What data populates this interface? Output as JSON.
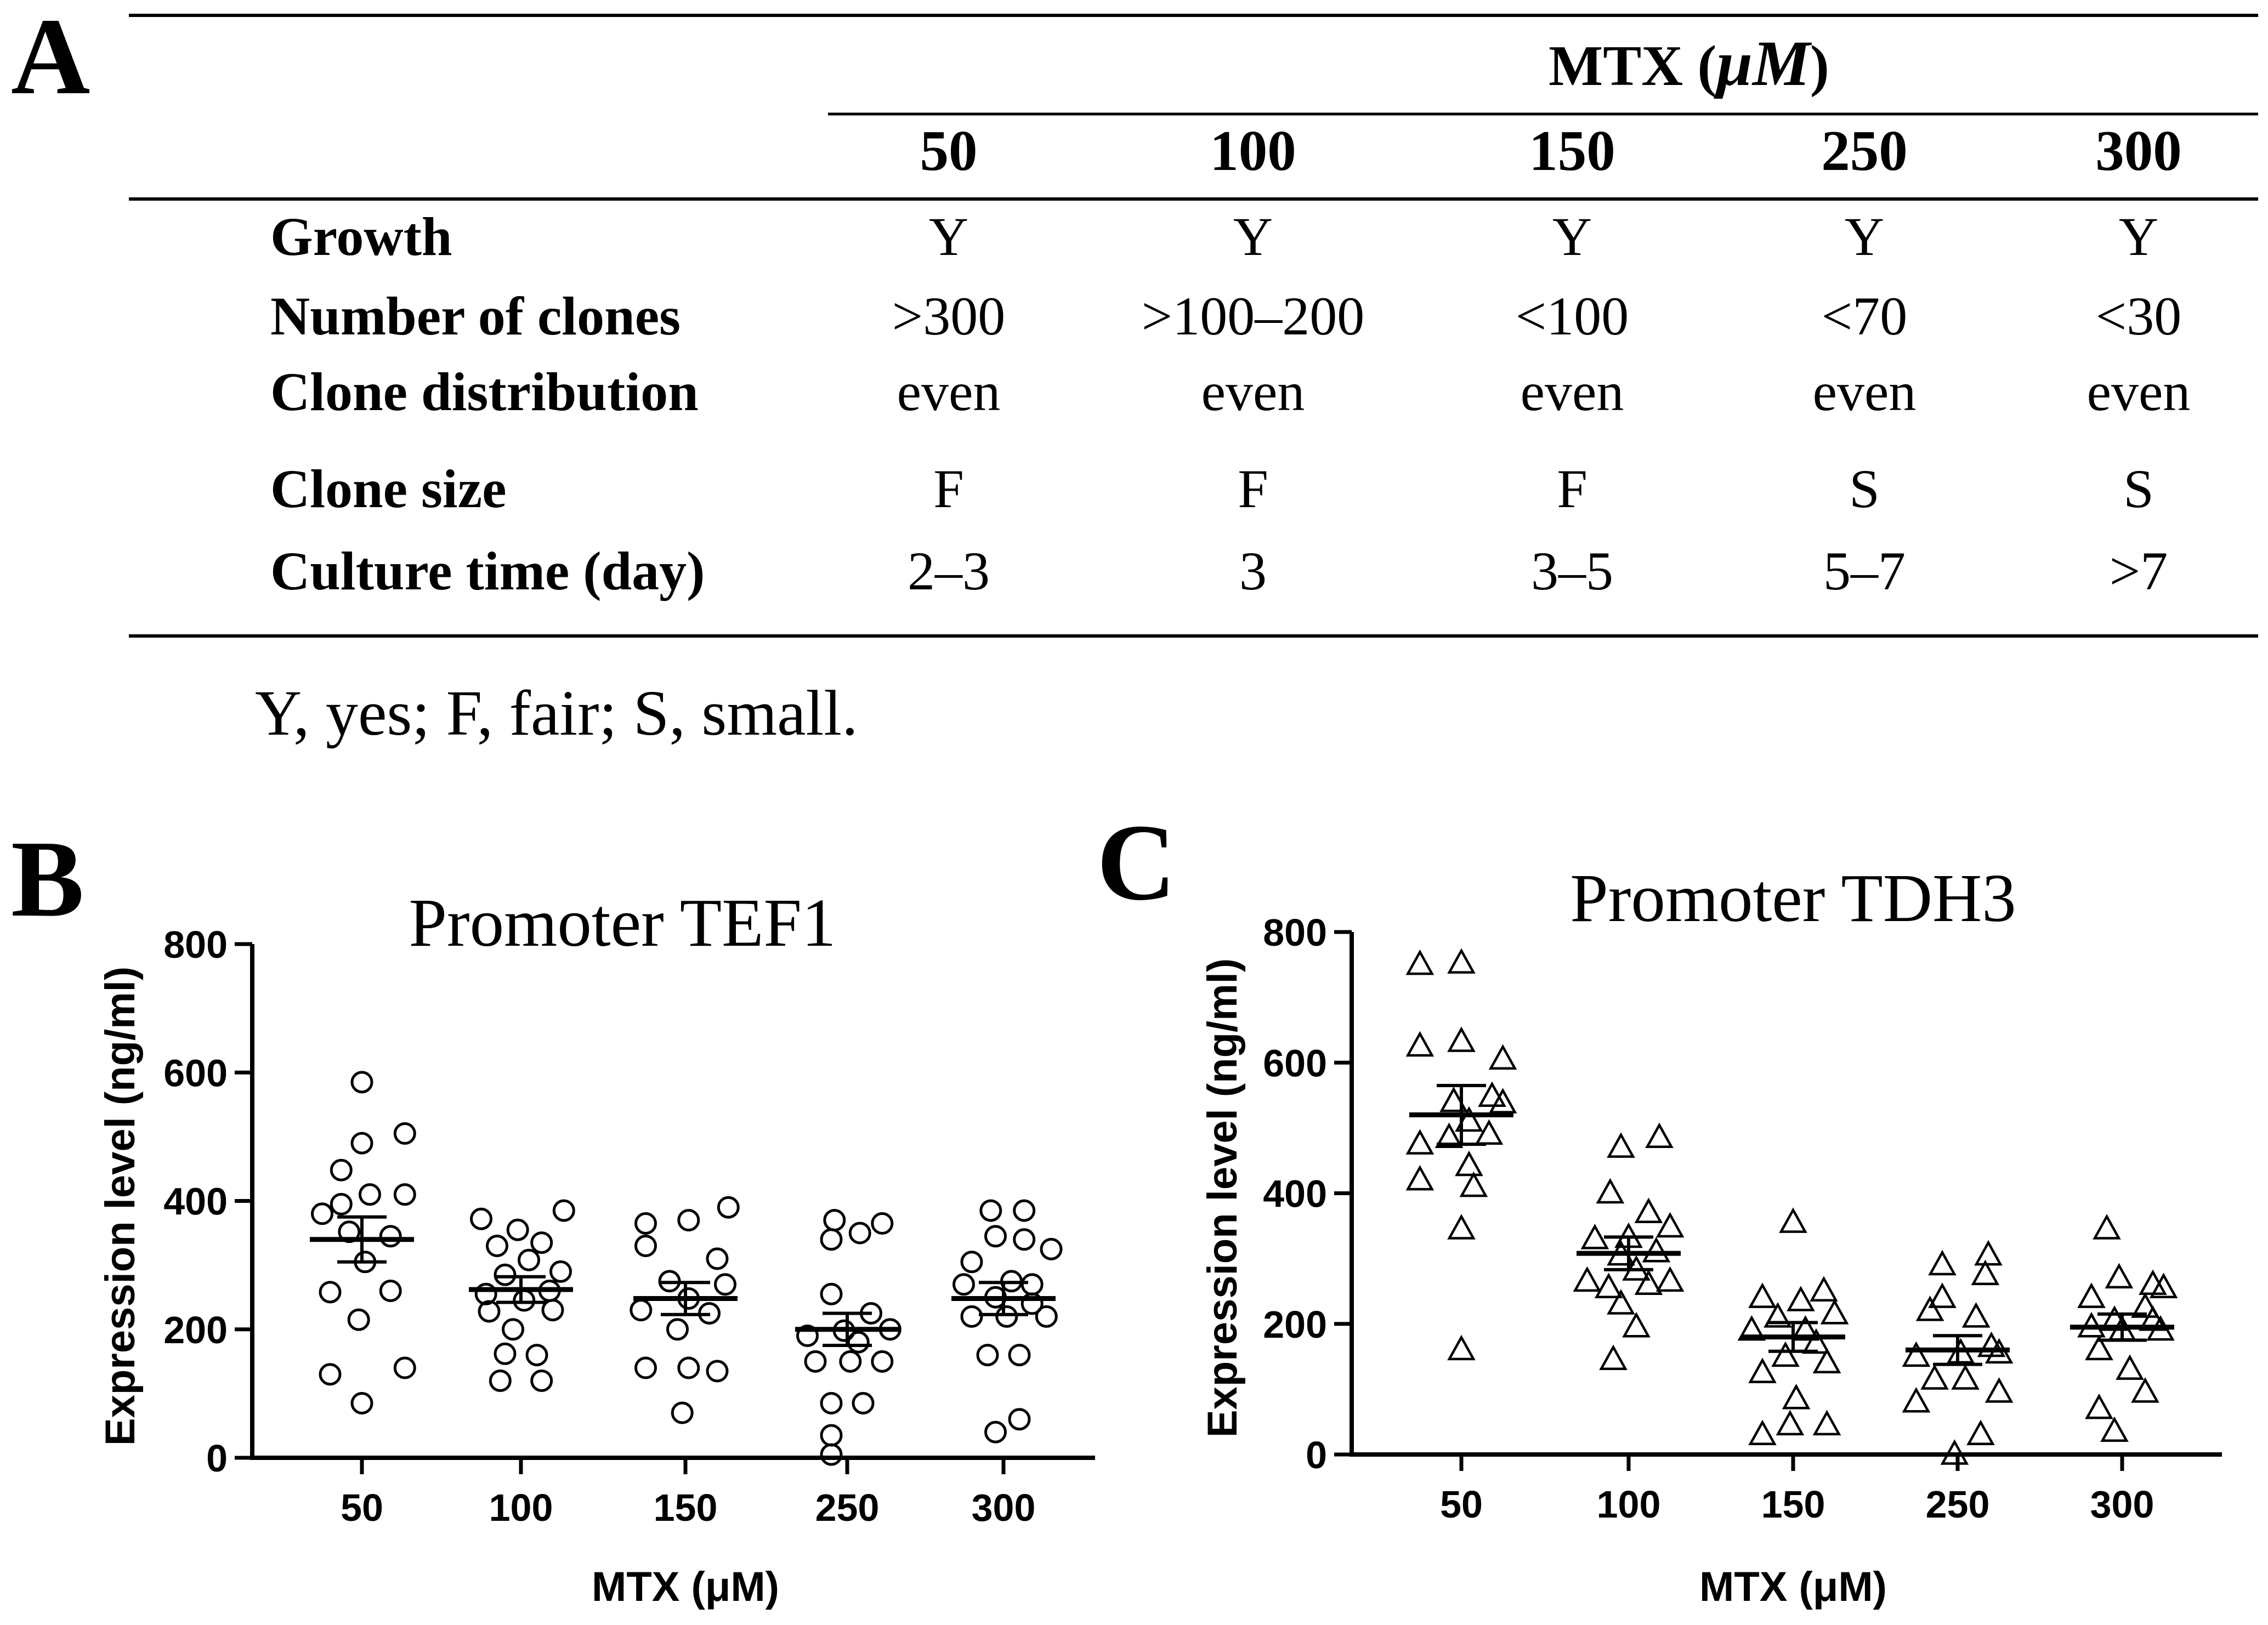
{
  "panel_labels": {
    "a": "A",
    "b": "B",
    "c": "C"
  },
  "table": {
    "group_header_main": "MTX (",
    "group_header_unit": "μM",
    "group_header_close": ")",
    "columns": [
      "50",
      "100",
      "150",
      "250",
      "300"
    ],
    "rows": [
      {
        "label": "Growth",
        "values": [
          "Y",
          "Y",
          "Y",
          "Y",
          "Y"
        ]
      },
      {
        "label": "Number of clones",
        "values": [
          ">300",
          ">100–200",
          "<100",
          "<70",
          "<30"
        ]
      },
      {
        "label": "Clone distribution",
        "values": [
          "even",
          "even",
          "even",
          "even",
          "even"
        ]
      },
      {
        "label": "Clone size",
        "values": [
          "F",
          "F",
          "F",
          "S",
          "S"
        ]
      },
      {
        "label": "Culture time (day)",
        "values": [
          "2–3",
          "3",
          "3–5",
          "5–7",
          ">7"
        ]
      }
    ],
    "footnote": "Y, yes; F, fair; S, small."
  },
  "chart_data": [
    {
      "panel": "B",
      "type": "scatter",
      "marker": "circle",
      "title": "Promoter TEF1",
      "xlabel": "MTX (μM)",
      "ylabel": "Expression level (ng/ml)",
      "ylim": [
        0,
        800
      ],
      "yticks": [
        "0",
        "200",
        "400",
        "600",
        "800"
      ],
      "categories": [
        "50",
        "100",
        "150",
        "250",
        "300"
      ],
      "groups": [
        {
          "category": "50",
          "mean": 340,
          "sem": 35,
          "points": [
            [
              0,
              585
            ],
            [
              -0.13,
              448
            ],
            [
              0.27,
              505
            ],
            [
              0,
              490
            ],
            [
              -0.13,
              395
            ],
            [
              0.05,
              410
            ],
            [
              0.27,
              410
            ],
            [
              -0.25,
              380
            ],
            [
              -0.08,
              352
            ],
            [
              0.18,
              345
            ],
            [
              0.02,
              305
            ],
            [
              -0.2,
              258
            ],
            [
              0.18,
              260
            ],
            [
              -0.02,
              215
            ],
            [
              0.27,
              140
            ],
            [
              -0.2,
              130
            ],
            [
              0,
              85
            ]
          ]
        },
        {
          "category": "100",
          "mean": 262,
          "sem": 20,
          "points": [
            [
              -0.25,
              372
            ],
            [
              0.27,
              385
            ],
            [
              -0.02,
              355
            ],
            [
              0.13,
              335
            ],
            [
              -0.15,
              330
            ],
            [
              0.05,
              308
            ],
            [
              -0.1,
              285
            ],
            [
              0.25,
              290
            ],
            [
              -0.22,
              255
            ],
            [
              0.18,
              260
            ],
            [
              0.02,
              245
            ],
            [
              -0.2,
              228
            ],
            [
              0.2,
              230
            ],
            [
              -0.05,
              200
            ],
            [
              -0.1,
              162
            ],
            [
              0.1,
              160
            ],
            [
              -0.13,
              120
            ],
            [
              0.13,
              120
            ]
          ]
        },
        {
          "category": "150",
          "mean": 248,
          "sem": 25,
          "points": [
            [
              -0.25,
              365
            ],
            [
              0.27,
              390
            ],
            [
              0.02,
              370
            ],
            [
              -0.25,
              330
            ],
            [
              0.2,
              310
            ],
            [
              -0.1,
              275
            ],
            [
              0.25,
              270
            ],
            [
              0.02,
              248
            ],
            [
              -0.28,
              230
            ],
            [
              0.15,
              225
            ],
            [
              -0.05,
              200
            ],
            [
              -0.25,
              140
            ],
            [
              0.02,
              140
            ],
            [
              0.2,
              135
            ],
            [
              -0.02,
              70
            ]
          ]
        },
        {
          "category": "250",
          "mean": 200,
          "sem": 25,
          "points": [
            [
              -0.08,
              370
            ],
            [
              0.22,
              365
            ],
            [
              -0.1,
              340
            ],
            [
              0.08,
              350
            ],
            [
              -0.1,
              255
            ],
            [
              0.15,
              225
            ],
            [
              -0.25,
              190
            ],
            [
              -0.02,
              198
            ],
            [
              0.27,
              200
            ],
            [
              0.07,
              180
            ],
            [
              -0.2,
              150
            ],
            [
              0.02,
              150
            ],
            [
              0.22,
              150
            ],
            [
              -0.1,
              85
            ],
            [
              0.1,
              85
            ],
            [
              -0.1,
              35
            ],
            [
              -0.1,
              5
            ]
          ]
        },
        {
          "category": "300",
          "mean": 248,
          "sem": 25,
          "points": [
            [
              -0.08,
              385
            ],
            [
              0.13,
              385
            ],
            [
              -0.05,
              345
            ],
            [
              0.13,
              340
            ],
            [
              0.3,
              325
            ],
            [
              -0.2,
              305
            ],
            [
              0.05,
              275
            ],
            [
              -0.25,
              270
            ],
            [
              0.18,
              270
            ],
            [
              -0.05,
              250
            ],
            [
              0.18,
              240
            ],
            [
              -0.2,
              220
            ],
            [
              0.02,
              220
            ],
            [
              0.27,
              220
            ],
            [
              -0.1,
              160
            ],
            [
              0.1,
              160
            ],
            [
              0.1,
              60
            ],
            [
              -0.05,
              40
            ]
          ]
        }
      ]
    },
    {
      "panel": "C",
      "type": "scatter",
      "marker": "triangle",
      "title": "Promoter TDH3",
      "xlabel": "MTX (μM)",
      "ylabel": "Expression level (ng/ml)",
      "ylim": [
        0,
        800
      ],
      "yticks": [
        "0",
        "200",
        "400",
        "600",
        "800"
      ],
      "categories": [
        "50",
        "100",
        "150",
        "250",
        "300"
      ],
      "groups": [
        {
          "category": "50",
          "mean": 520,
          "sem": 45,
          "points": [
            [
              -0.27,
              750
            ],
            [
              0,
              752
            ],
            [
              -0.27,
              625
            ],
            [
              0,
              632
            ],
            [
              0.27,
              605
            ],
            [
              0.2,
              548
            ],
            [
              -0.05,
              540
            ],
            [
              0.27,
              538
            ],
            [
              -0.27,
              475
            ],
            [
              0.05,
              510
            ],
            [
              -0.08,
              485
            ],
            [
              0.18,
              490
            ],
            [
              0.05,
              442
            ],
            [
              -0.27,
              420
            ],
            [
              0.08,
              410
            ],
            [
              0,
              345
            ],
            [
              0,
              160
            ]
          ]
        },
        {
          "category": "100",
          "mean": 308,
          "sem": 25,
          "points": [
            [
              0.2,
              485
            ],
            [
              -0.05,
              470
            ],
            [
              -0.12,
              400
            ],
            [
              0.13,
              370
            ],
            [
              0.27,
              348
            ],
            [
              -0.22,
              330
            ],
            [
              0,
              332
            ],
            [
              -0.05,
              305
            ],
            [
              0.18,
              310
            ],
            [
              -0.27,
              265
            ],
            [
              0.05,
              282
            ],
            [
              -0.13,
              255
            ],
            [
              0.13,
              260
            ],
            [
              0.27,
              265
            ],
            [
              -0.05,
              230
            ],
            [
              0.05,
              195
            ],
            [
              -0.1,
              145
            ]
          ]
        },
        {
          "category": "150",
          "mean": 180,
          "sem": 22,
          "points": [
            [
              0,
              355
            ],
            [
              0.2,
              250
            ],
            [
              -0.2,
              240
            ],
            [
              0.05,
              235
            ],
            [
              0.27,
              215
            ],
            [
              -0.1,
              210
            ],
            [
              -0.27,
              190
            ],
            [
              0.08,
              190
            ],
            [
              0.15,
              170
            ],
            [
              -0.05,
              150
            ],
            [
              0.22,
              140
            ],
            [
              -0.2,
              125
            ],
            [
              0.02,
              85
            ],
            [
              -0.02,
              45
            ],
            [
              0.22,
              45
            ],
            [
              -0.2,
              30
            ]
          ]
        },
        {
          "category": "250",
          "mean": 160,
          "sem": 22,
          "points": [
            [
              -0.1,
              290
            ],
            [
              0.2,
              305
            ],
            [
              0.18,
              275
            ],
            [
              -0.1,
              240
            ],
            [
              -0.18,
              220
            ],
            [
              0.12,
              210
            ],
            [
              0.22,
              165
            ],
            [
              -0.27,
              150
            ],
            [
              0.02,
              155
            ],
            [
              0.27,
              155
            ],
            [
              -0.15,
              115
            ],
            [
              0.05,
              115
            ],
            [
              -0.27,
              80
            ],
            [
              0.27,
              95
            ],
            [
              0.15,
              30
            ],
            [
              -0.02,
              0
            ]
          ]
        },
        {
          "category": "300",
          "mean": 195,
          "sem": 20,
          "points": [
            [
              -0.1,
              345
            ],
            [
              0.2,
              260
            ],
            [
              -0.02,
              270
            ],
            [
              0.27,
              255
            ],
            [
              -0.2,
              240
            ],
            [
              0.15,
              225
            ],
            [
              -0.05,
              205
            ],
            [
              0.2,
              205
            ],
            [
              -0.2,
              195
            ],
            [
              0,
              190
            ],
            [
              0.25,
              190
            ],
            [
              -0.15,
              160
            ],
            [
              0.05,
              130
            ],
            [
              0.15,
              95
            ],
            [
              -0.15,
              70
            ],
            [
              -0.05,
              35
            ]
          ]
        }
      ]
    }
  ]
}
